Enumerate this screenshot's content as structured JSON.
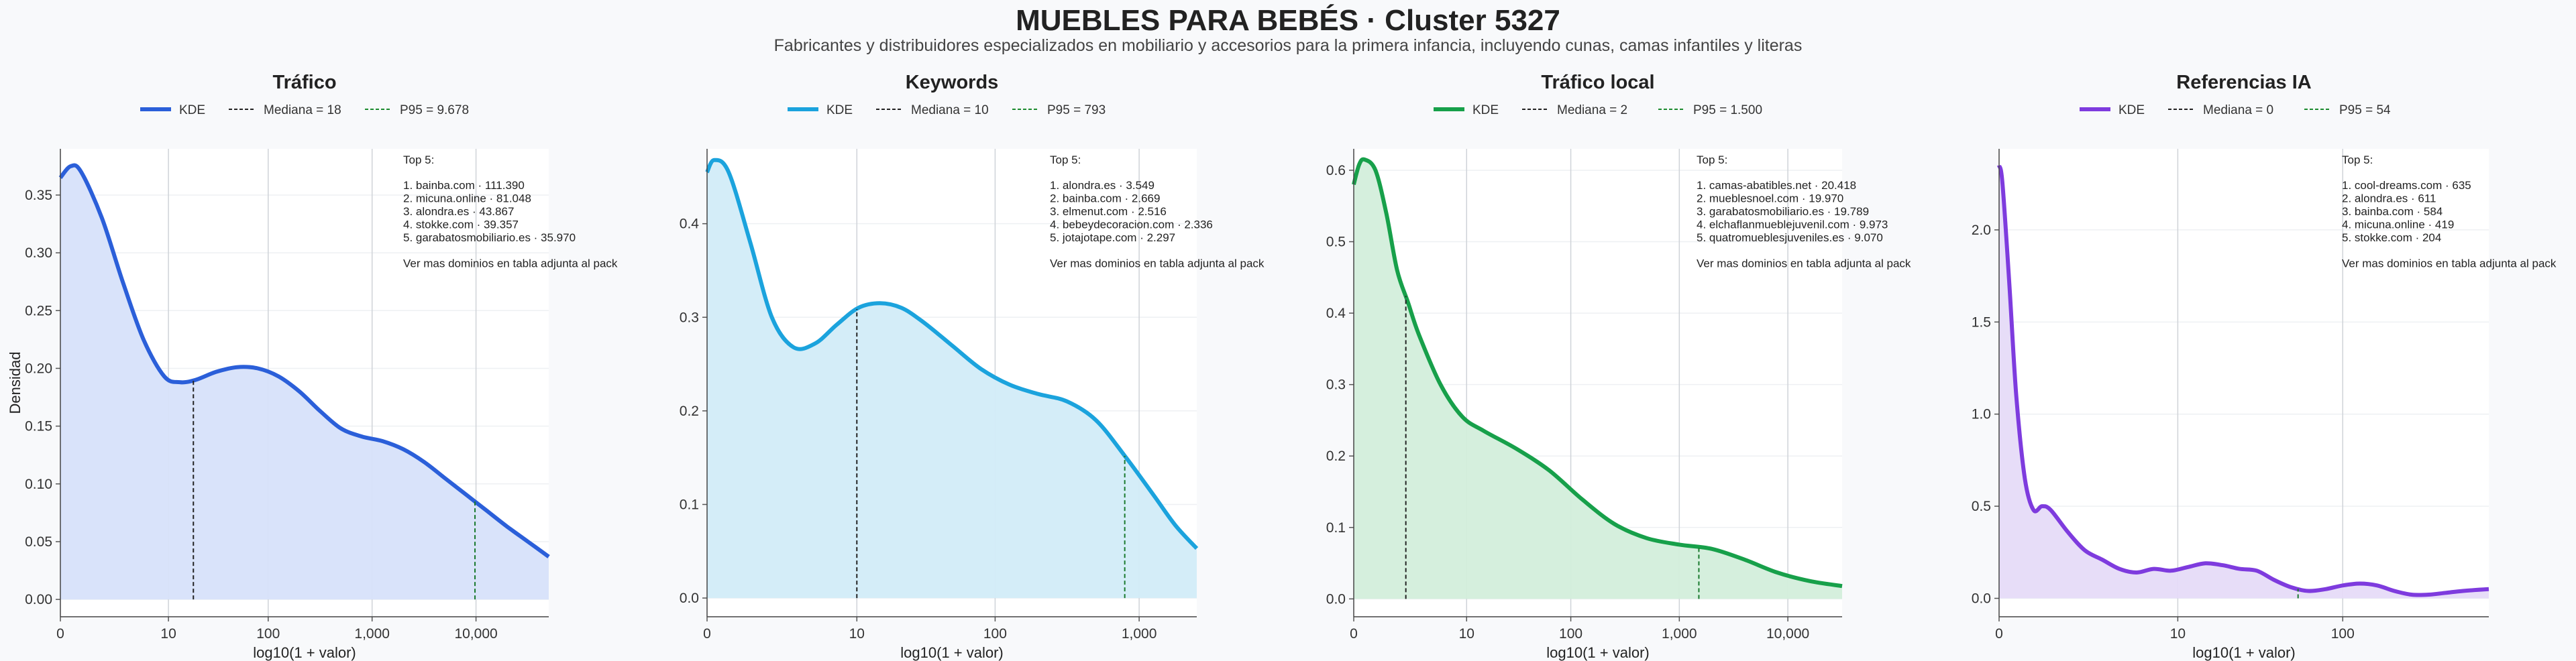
{
  "figure": {
    "title": "MUEBLES PARA BEBÉS · Cluster 5327",
    "subtitle": "Fabricantes y distribuidores especializados en mobiliario y accesorios para la primera infancia, incluyendo cunas, camas infantiles y literas",
    "shared_ylabel": "Densidad",
    "shared_xlabel": "log10(1 + valor)",
    "legend_kde_label": "KDE",
    "note": "Ver mas dominios en tabla adjunta al pack",
    "top_label": "Top 5:"
  },
  "chart_data": [
    {
      "type": "area",
      "title": "Tráfico",
      "color": "#2b5fd9",
      "fill": "#d7e2fa",
      "xlabel": "log10(1 + valor)",
      "ylabel": "Densidad",
      "xlim": [
        0,
        4.7
      ],
      "ylim": [
        -0.015,
        0.39
      ],
      "x_ticks": [
        {
          "v": 0,
          "label": "0"
        },
        {
          "v": 1.04,
          "label": "10"
        },
        {
          "v": 2.0,
          "label": "100"
        },
        {
          "v": 3.0,
          "label": "1,000"
        },
        {
          "v": 4.0,
          "label": "10,000"
        }
      ],
      "y_ticks": [
        {
          "v": 0.0,
          "label": "0.00"
        },
        {
          "v": 0.05,
          "label": "0.05"
        },
        {
          "v": 0.1,
          "label": "0.10"
        },
        {
          "v": 0.15,
          "label": "0.15"
        },
        {
          "v": 0.2,
          "label": "0.20"
        },
        {
          "v": 0.25,
          "label": "0.25"
        },
        {
          "v": 0.3,
          "label": "0.30"
        },
        {
          "v": 0.35,
          "label": "0.35"
        }
      ],
      "kde": {
        "x": [
          0,
          0.1,
          0.2,
          0.4,
          0.6,
          0.8,
          1.0,
          1.15,
          1.3,
          1.5,
          1.7,
          1.9,
          2.1,
          2.3,
          2.5,
          2.7,
          2.9,
          3.1,
          3.3,
          3.5,
          3.7,
          3.9,
          4.1,
          4.3,
          4.5,
          4.7
        ],
        "y": [
          0.365,
          0.375,
          0.37,
          0.33,
          0.275,
          0.225,
          0.193,
          0.188,
          0.19,
          0.197,
          0.201,
          0.2,
          0.193,
          0.18,
          0.163,
          0.148,
          0.141,
          0.137,
          0.13,
          0.119,
          0.105,
          0.091,
          0.077,
          0.063,
          0.05,
          0.037
        ]
      },
      "median": {
        "label": "Mediana = 18",
        "x": 1.28
      },
      "p95": {
        "label": "P95 = 9.678",
        "x": 3.99
      },
      "top5": [
        "1. bainba.com · 111.390",
        "2. micuna.online · 81.048",
        "3. alondra.es · 43.867",
        "4. stokke.com · 39.357",
        "5. garabatosmobiliario.es · 35.970"
      ]
    },
    {
      "type": "area",
      "title": "Keywords",
      "color": "#1ba3dd",
      "fill": "#d2ecf8",
      "xlabel": "log10(1 + valor)",
      "ylabel": "",
      "xlim": [
        0,
        3.4
      ],
      "ylim": [
        -0.02,
        0.48
      ],
      "x_ticks": [
        {
          "v": 0,
          "label": "0"
        },
        {
          "v": 1.04,
          "label": "10"
        },
        {
          "v": 2.0,
          "label": "100"
        },
        {
          "v": 3.0,
          "label": "1,000"
        }
      ],
      "y_ticks": [
        {
          "v": 0.0,
          "label": "0.0"
        },
        {
          "v": 0.1,
          "label": "0.1"
        },
        {
          "v": 0.2,
          "label": "0.2"
        },
        {
          "v": 0.3,
          "label": "0.3"
        },
        {
          "v": 0.4,
          "label": "0.4"
        }
      ],
      "kde": {
        "x": [
          0,
          0.05,
          0.15,
          0.3,
          0.45,
          0.6,
          0.75,
          0.9,
          1.05,
          1.2,
          1.35,
          1.5,
          1.7,
          1.9,
          2.1,
          2.3,
          2.5,
          2.7,
          2.9,
          3.1,
          3.25,
          3.4
        ],
        "y": [
          0.455,
          0.468,
          0.455,
          0.38,
          0.3,
          0.268,
          0.272,
          0.292,
          0.31,
          0.315,
          0.31,
          0.295,
          0.27,
          0.245,
          0.228,
          0.218,
          0.21,
          0.19,
          0.152,
          0.11,
          0.078,
          0.053
        ]
      },
      "median": {
        "label": "Mediana = 10",
        "x": 1.04
      },
      "p95": {
        "label": "P95 = 793",
        "x": 2.9
      },
      "top5": [
        "1. alondra.es · 3.549",
        "2. bainba.com · 2.669",
        "3. elmenut.com · 2.516",
        "4. bebeydecoracion.com · 2.336",
        "5. jotajotape.com · 2.297"
      ]
    },
    {
      "type": "area",
      "title": "Tráfico local",
      "color": "#17a04a",
      "fill": "#d3eedb",
      "xlabel": "log10(1 + valor)",
      "ylabel": "",
      "xlim": [
        0,
        4.5
      ],
      "ylim": [
        -0.025,
        0.63
      ],
      "x_ticks": [
        {
          "v": 0,
          "label": "0"
        },
        {
          "v": 1.04,
          "label": "10"
        },
        {
          "v": 2.0,
          "label": "100"
        },
        {
          "v": 3.0,
          "label": "1,000"
        },
        {
          "v": 4.0,
          "label": "10,000"
        }
      ],
      "y_ticks": [
        {
          "v": 0.0,
          "label": "0.0"
        },
        {
          "v": 0.1,
          "label": "0.1"
        },
        {
          "v": 0.2,
          "label": "0.2"
        },
        {
          "v": 0.3,
          "label": "0.3"
        },
        {
          "v": 0.4,
          "label": "0.4"
        },
        {
          "v": 0.5,
          "label": "0.5"
        },
        {
          "v": 0.6,
          "label": "0.6"
        }
      ],
      "kde": {
        "x": [
          0,
          0.05,
          0.1,
          0.2,
          0.3,
          0.4,
          0.5,
          0.6,
          0.8,
          1.0,
          1.2,
          1.5,
          1.8,
          2.1,
          2.4,
          2.7,
          3.0,
          3.3,
          3.6,
          3.9,
          4.2,
          4.5
        ],
        "y": [
          0.58,
          0.608,
          0.615,
          0.6,
          0.54,
          0.46,
          0.415,
          0.37,
          0.3,
          0.255,
          0.235,
          0.21,
          0.18,
          0.14,
          0.105,
          0.085,
          0.076,
          0.07,
          0.055,
          0.037,
          0.025,
          0.018
        ]
      },
      "median": {
        "label": "Mediana = 2",
        "x": 0.48
      },
      "p95": {
        "label": "P95 = 1.500",
        "x": 3.18
      },
      "top5": [
        "1. camas-abatibles.net · 20.418",
        "2. mueblesnoel.com · 19.970",
        "3. garabatosmobiliario.es · 19.789",
        "4. elchaflanmueblejuvenil.com · 9.973",
        "5. quatromueblesjuveniles.es · 9.070"
      ]
    },
    {
      "type": "area",
      "title": "Referencias IA",
      "color": "#7e3bde",
      "fill": "#e6dbf8",
      "xlabel": "log10(1 + valor)",
      "ylabel": "",
      "xlim": [
        0,
        2.85
      ],
      "ylim": [
        -0.1,
        2.44
      ],
      "x_ticks": [
        {
          "v": 0,
          "label": "0"
        },
        {
          "v": 1.04,
          "label": "10"
        },
        {
          "v": 2.0,
          "label": "100"
        }
      ],
      "y_ticks": [
        {
          "v": 0.0,
          "label": "0.0"
        },
        {
          "v": 0.5,
          "label": "0.5"
        },
        {
          "v": 1.0,
          "label": "1.0"
        },
        {
          "v": 1.5,
          "label": "1.5"
        },
        {
          "v": 2.0,
          "label": "2.0"
        }
      ],
      "kde": {
        "x": [
          0,
          0.02,
          0.06,
          0.1,
          0.15,
          0.2,
          0.25,
          0.3,
          0.4,
          0.5,
          0.6,
          0.7,
          0.8,
          0.9,
          1.0,
          1.1,
          1.2,
          1.3,
          1.4,
          1.5,
          1.6,
          1.7,
          1.8,
          1.9,
          2.0,
          2.1,
          2.2,
          2.3,
          2.4,
          2.5,
          2.6,
          2.7,
          2.85
        ],
        "y": [
          2.35,
          2.25,
          1.7,
          1.1,
          0.65,
          0.48,
          0.5,
          0.48,
          0.36,
          0.26,
          0.21,
          0.16,
          0.14,
          0.16,
          0.15,
          0.17,
          0.19,
          0.18,
          0.16,
          0.15,
          0.1,
          0.06,
          0.04,
          0.05,
          0.07,
          0.08,
          0.07,
          0.04,
          0.02,
          0.02,
          0.03,
          0.04,
          0.05
        ]
      },
      "median": {
        "label": "Mediana = 0",
        "x": 0.0
      },
      "p95": {
        "label": "P95 = 54",
        "x": 1.74
      },
      "top5": [
        "1. cool-dreams.com · 635",
        "2. alondra.es · 611",
        "3. bainba.com · 584",
        "4. micuna.online · 419",
        "5. stokke.com · 204"
      ]
    }
  ]
}
